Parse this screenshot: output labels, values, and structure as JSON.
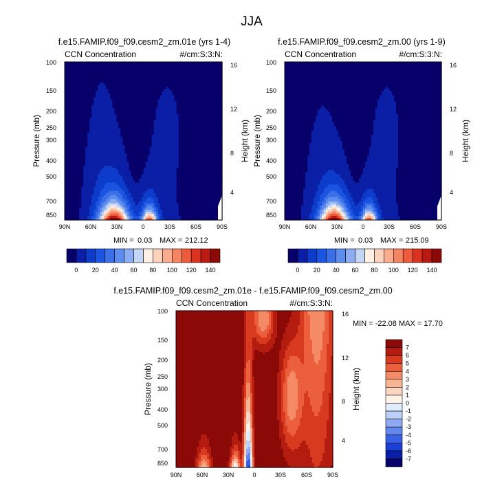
{
  "page_title": "JJA",
  "colors": {
    "ccn_scale": [
      "#08006a",
      "#0a1ea6",
      "#0d3ccb",
      "#1a54e0",
      "#3a6fe8",
      "#5b8cee",
      "#8cadf2",
      "#c3d6f6",
      "#fff0e6",
      "#fcd2bd",
      "#f9ad8e",
      "#f58462",
      "#ee5a3c",
      "#dc3320",
      "#bb1a12",
      "#8b0a07"
    ],
    "diff_scale": [
      "#08006a",
      "#0a1ea6",
      "#1a3fd6",
      "#3a62e6",
      "#6288ee",
      "#8faaf3",
      "#bcd0f7",
      "#e0ecfb",
      "#fff2e6",
      "#fcd6c0",
      "#f9b494",
      "#f48a66",
      "#ec5f3d",
      "#d83a20",
      "#b51c10",
      "#8b0a07"
    ]
  },
  "chart_data": [
    {
      "type": "heatmap",
      "id": "ccn_01e",
      "title": "f.e15.FAMIP.f09_f09.cesm2_zm.01e (yrs 1-4)",
      "left_label": "CCN Concentration",
      "right_label": "#/cm:S:3:N:",
      "ylabel": "Pressure (mb)",
      "ylabel_right": "Height (km)",
      "x_ticks": [
        "90N",
        "60N",
        "30N",
        "0",
        "30S",
        "60S",
        "90S"
      ],
      "y_ticks": [
        "100",
        "150",
        "200",
        "250",
        "300",
        "400",
        "500",
        "700",
        "850"
      ],
      "y_right_ticks": [
        "16",
        "12",
        "8",
        "4"
      ],
      "min_label": "MIN =",
      "min_value": "0.03",
      "max_label": "MAX =",
      "max_value": "212.12",
      "variant": 1
    },
    {
      "type": "heatmap",
      "id": "ccn_00",
      "title": "f.e15.FAMIP.f09_f09.cesm2_zm.00 (yrs 1-9)",
      "left_label": "CCN Concentration",
      "right_label": "#/cm:S:3:N:",
      "ylabel": "Pressure (mb)",
      "ylabel_right": "Height (km)",
      "x_ticks": [
        "90N",
        "60N",
        "30N",
        "0",
        "30S",
        "60S",
        "90S"
      ],
      "y_ticks": [
        "100",
        "150",
        "200",
        "250",
        "300",
        "400",
        "500",
        "700",
        "850"
      ],
      "y_right_ticks": [
        "16",
        "12",
        "8",
        "4"
      ],
      "min_label": "MIN =",
      "min_value": "0.03",
      "max_label": "MAX =",
      "max_value": "215.09",
      "variant": 2
    },
    {
      "type": "heatmap",
      "id": "diff",
      "title": "f.e15.FAMIP.f09_f09.cesm2_zm.01e - f.e15.FAMIP.f09_f09.cesm2_zm.00",
      "left_label": "CCN Concentration",
      "right_label": "#/cm:S:3:N:",
      "ylabel": "Pressure (mb)",
      "ylabel_right": "Height (km)",
      "x_ticks": [
        "90N",
        "60N",
        "30N",
        "0",
        "30S",
        "60S",
        "90S"
      ],
      "y_ticks": [
        "100",
        "150",
        "200",
        "250",
        "300",
        "400",
        "500",
        "700",
        "850"
      ],
      "y_right_ticks": [
        "16",
        "12",
        "8",
        "4"
      ],
      "minmax_text": "MIN = -22.08  MAX = 17.70"
    }
  ],
  "ccn_colorbar": {
    "tick_labels": [
      "0",
      "20",
      "40",
      "60",
      "80",
      "100",
      "120",
      "140"
    ]
  },
  "diff_colorbar": {
    "tick_labels": [
      "7",
      "6",
      "5",
      "4",
      "3",
      "2",
      "1",
      "0",
      "-1",
      "-2",
      "-3",
      "-4",
      "-5",
      "-6",
      "-7"
    ]
  }
}
